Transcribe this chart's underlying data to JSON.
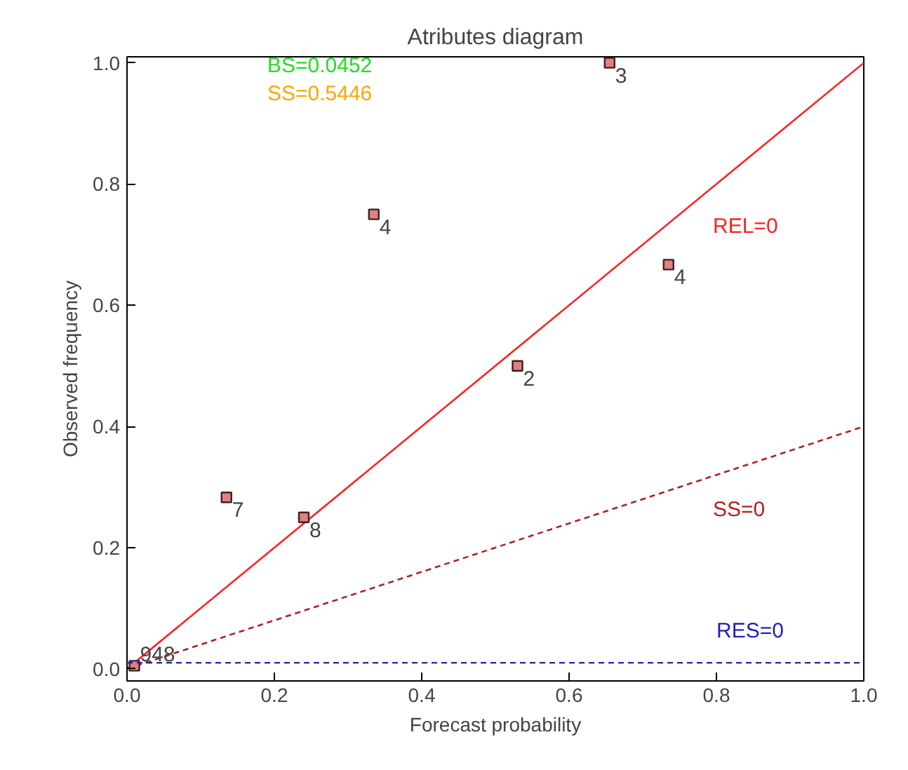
{
  "chart_data": {
    "type": "scatter",
    "title": "Atributes diagram",
    "xlabel": "Forecast probability",
    "ylabel": "Observed frequency",
    "xlim": [
      0,
      1
    ],
    "ylim": [
      -0.02,
      1.01
    ],
    "xticks": [
      {
        "value": 0,
        "label": "0.0"
      },
      0.2,
      0.4,
      0.6,
      0.8,
      {
        "value": 1,
        "label": "1.0"
      }
    ],
    "yticks": [
      {
        "value": 0,
        "label": "0.0"
      },
      0.2,
      0.4,
      0.6,
      0.8,
      {
        "value": 1,
        "label": "1.0"
      }
    ],
    "grid": false,
    "series": [
      {
        "type": "line",
        "name": "REL=0",
        "color": "#ff2020",
        "x": [
          0,
          1
        ],
        "values": [
          0,
          1
        ],
        "line_style": "solid"
      },
      {
        "type": "line",
        "name": "SS=0",
        "color": "#b02020",
        "x": [
          0,
          1
        ],
        "values": [
          0,
          0.4
        ],
        "line_style": "dashed"
      },
      {
        "color": "#e08080",
        "marker": "square",
        "x": [
          0.01,
          0.135,
          0.24,
          0.335,
          0.53,
          0.655,
          0.735
        ],
        "values": [
          0.005,
          0.283,
          0.25,
          0.75,
          0.5,
          1.0,
          0.667
        ]
      }
    ],
    "ref_lines": [
      {
        "axis": "y",
        "value": 0.01,
        "label": "RES=0",
        "color": "#2020c0",
        "line_style": "dashed"
      }
    ],
    "annotations": [
      "BS=0.0452",
      "SS=0.5446",
      {
        "text": "948",
        "x": 0.01,
        "y": 0.005
      },
      {
        "text": "7",
        "x": 0.135,
        "y": 0.283
      },
      {
        "text": "8",
        "x": 0.24,
        "y": 0.25
      },
      {
        "text": "4",
        "x": 0.335,
        "y": 0.75
      },
      {
        "text": "2",
        "x": 0.53,
        "y": 0.5
      },
      {
        "text": "3",
        "x": 0.655,
        "y": 1.0
      },
      {
        "text": "4",
        "x": 0.735,
        "y": 0.667
      }
    ]
  }
}
